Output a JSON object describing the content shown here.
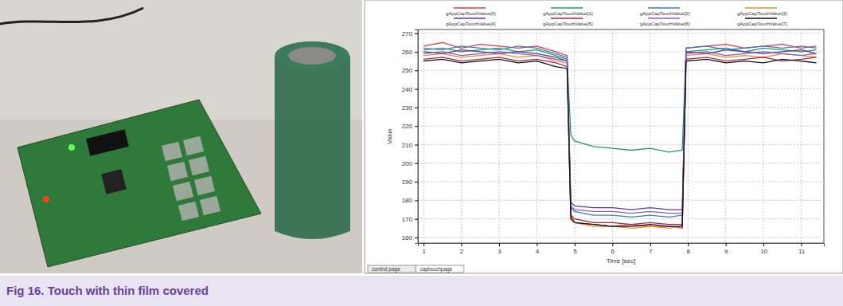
{
  "chart_data": {
    "type": "line",
    "title": "Fig 16. Touch with thin film covered",
    "x_label": "Time [sec]",
    "y_label": "Value",
    "annotations": [
      "control page",
      "captouchpage"
    ],
    "x": [
      1,
      1.5,
      2,
      2.5,
      3,
      3.5,
      4,
      4.5,
      4.8,
      4.9,
      5,
      5.5,
      6,
      6.5,
      7,
      7.5,
      7.85,
      7.95,
      8.5,
      9,
      9.5,
      10,
      10.5,
      11,
      11.4
    ],
    "xlim": [
      0.85,
      11.6
    ],
    "xticks": [
      1,
      2,
      3,
      4,
      5,
      6,
      7,
      8,
      9,
      10,
      11
    ],
    "ylim": [
      157,
      272
    ],
    "yticks": [
      160,
      170,
      180,
      190,
      200,
      210,
      220,
      230,
      240,
      250,
      260,
      270
    ],
    "grid": true,
    "legend": "top",
    "series": [
      {
        "name": "gAppCapTouchValue[0]",
        "color": "#e0383e",
        "values": [
          263,
          265,
          262,
          264,
          263,
          262,
          263,
          260,
          258,
          172,
          168,
          167,
          166,
          167,
          166,
          166,
          165,
          262,
          263,
          264,
          262,
          263,
          264,
          262,
          263
        ]
      },
      {
        "name": "gAppCapTouchValue[1]",
        "color": "#1f9a6e",
        "values": [
          261,
          262,
          260,
          261,
          262,
          260,
          261,
          258,
          256,
          215,
          212,
          209,
          208,
          207,
          208,
          206,
          207,
          260,
          261,
          262,
          260,
          262,
          261,
          260,
          261
        ]
      },
      {
        "name": "gAppCapTouchValue[2]",
        "color": "#3a7cc4",
        "values": [
          262,
          261,
          263,
          262,
          261,
          263,
          262,
          259,
          257,
          176,
          174,
          172,
          172,
          171,
          172,
          171,
          172,
          262,
          263,
          261,
          262,
          263,
          262,
          263,
          262
        ]
      },
      {
        "name": "gAppCapTouchValue[3]",
        "color": "#f08c2a",
        "values": [
          258,
          259,
          257,
          258,
          259,
          257,
          258,
          255,
          254,
          170,
          168,
          166,
          166,
          165,
          166,
          165,
          166,
          258,
          259,
          257,
          258,
          257,
          259,
          258,
          257
        ]
      },
      {
        "name": "gAppCapTouchValue[4]",
        "color": "#5b3a8c",
        "values": [
          260,
          259,
          261,
          260,
          259,
          260,
          259,
          257,
          255,
          179,
          177,
          176,
          176,
          175,
          176,
          175,
          175,
          260,
          259,
          261,
          260,
          259,
          260,
          261,
          259
        ]
      },
      {
        "name": "gAppCapTouchValue[5]",
        "color": "#a0284a",
        "values": [
          256,
          257,
          255,
          256,
          257,
          255,
          256,
          254,
          252,
          172,
          170,
          168,
          168,
          167,
          168,
          167,
          167,
          256,
          257,
          255,
          256,
          257,
          255,
          256,
          257
        ]
      },
      {
        "name": "gAppCapTouchValue[6]",
        "color": "#8a5cc8",
        "values": [
          259,
          260,
          258,
          259,
          260,
          259,
          258,
          256,
          255,
          177,
          175,
          174,
          174,
          173,
          174,
          173,
          173,
          259,
          260,
          258,
          259,
          260,
          259,
          258,
          259
        ]
      },
      {
        "name": "gAppCapTouchValue[7]",
        "color": "#111111",
        "values": [
          255,
          256,
          254,
          255,
          256,
          254,
          255,
          252,
          251,
          170,
          168,
          167,
          166,
          166,
          167,
          166,
          166,
          255,
          256,
          254,
          255,
          254,
          256,
          255,
          254
        ]
      }
    ]
  }
}
